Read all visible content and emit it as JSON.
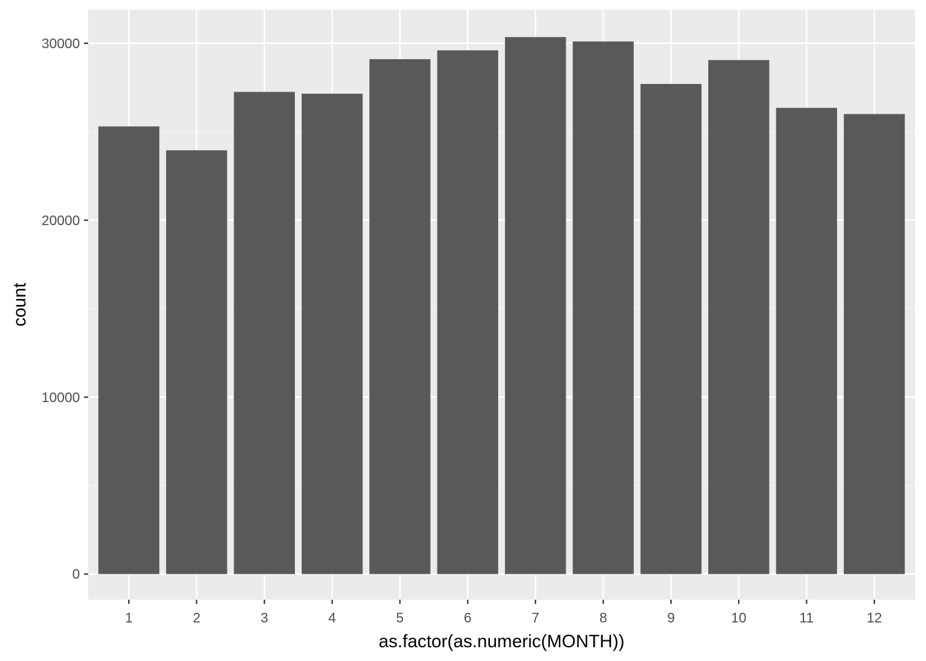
{
  "chart_data": {
    "type": "bar",
    "title": "",
    "xlabel": "as.factor(as.numeric(MONTH))",
    "ylabel": "count",
    "categories": [
      "1",
      "2",
      "3",
      "4",
      "5",
      "6",
      "7",
      "8",
      "9",
      "10",
      "11",
      "12"
    ],
    "values": [
      25300,
      23950,
      27250,
      27150,
      29100,
      29600,
      30350,
      30100,
      27700,
      29050,
      26350,
      26000
    ],
    "ylim": [
      -1450,
      31900
    ],
    "yticks": [
      0,
      10000,
      20000,
      30000
    ],
    "ytick_labels": [
      "0",
      "10000",
      "20000",
      "30000"
    ],
    "y_minor_ticks": [
      5000,
      15000,
      25000
    ],
    "grid": true,
    "colors": {
      "bar": "#595959",
      "panel": "#ebebeb",
      "grid_major": "#ffffff",
      "grid_minor": "#f5f5f5",
      "tick": "#333333"
    }
  }
}
